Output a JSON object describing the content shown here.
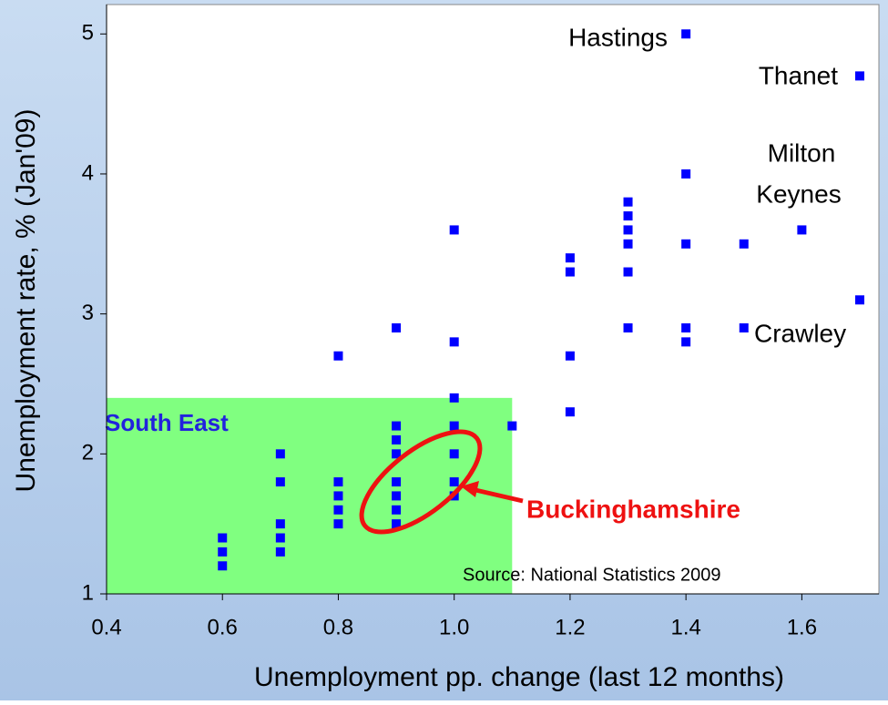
{
  "chart_data": {
    "type": "scatter",
    "x_label": "Unemployment pp. change (last 12 months)",
    "y_label": "Unemployment rate, % (Jan'09)",
    "color": "#0000ff",
    "xlim": [
      0.4,
      1.733
    ],
    "ylim": [
      1,
      5.21
    ],
    "xticks": [
      0.4,
      0.6,
      0.8,
      {
        "value": 1,
        "label": "1.0"
      },
      1.2,
      1.4,
      1.6
    ],
    "yticks": [
      1,
      2,
      3,
      4,
      5
    ],
    "x": [
      0.6,
      0.6,
      0.6,
      0.7,
      0.7,
      0.7,
      0.7,
      0.7,
      0.8,
      0.8,
      0.8,
      0.8,
      0.8,
      0.9,
      0.9,
      0.9,
      0.9,
      0.9,
      0.9,
      0.9,
      0.9,
      1.0,
      1.0,
      1.0,
      1.0,
      1.0,
      1.0,
      1.0,
      1.1,
      1.2,
      1.2,
      1.2,
      1.2,
      1.3,
      1.3,
      1.3,
      1.3,
      1.3,
      1.3,
      1.4,
      1.4,
      1.4,
      1.4,
      1.4,
      1.5,
      1.5,
      1.6,
      1.7,
      1.7
    ],
    "y": [
      1.4,
      1.3,
      1.2,
      2.0,
      1.8,
      1.5,
      1.4,
      1.3,
      2.7,
      1.8,
      1.7,
      1.6,
      1.5,
      2.9,
      2.2,
      2.1,
      2.0,
      1.8,
      1.7,
      1.6,
      1.5,
      3.6,
      2.8,
      2.4,
      2.2,
      2.0,
      1.8,
      1.7,
      2.2,
      3.4,
      3.3,
      2.7,
      2.3,
      3.8,
      3.7,
      3.6,
      3.5,
      3.3,
      2.9,
      5.0,
      4.0,
      3.5,
      2.9,
      2.8,
      3.5,
      2.9,
      3.6,
      4.7,
      3.1
    ],
    "shaded_region": {
      "label": "South East",
      "color": "#80ff80",
      "xlim": [
        0.4,
        1.1
      ],
      "ylim": [
        1,
        2.4
      ]
    },
    "annotations": [
      "Hastings",
      "Thanet",
      "Milton",
      "Keynes",
      "Crawley"
    ],
    "highlight": "Buckinghamshire",
    "source": "Source: National Statistics 2009"
  }
}
